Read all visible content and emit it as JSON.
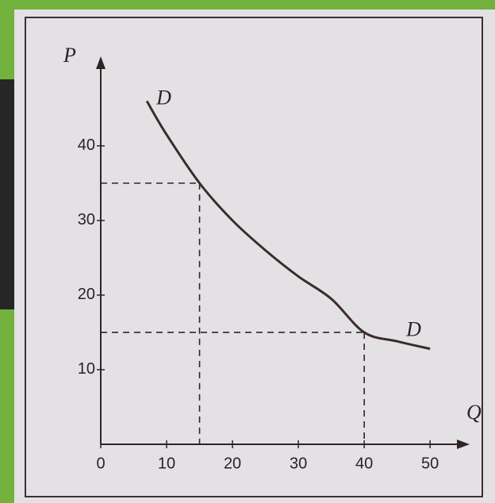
{
  "chart_data": {
    "type": "line",
    "x_label": "Q",
    "y_label": "P",
    "x": [
      7,
      10,
      15,
      20,
      25,
      30,
      35,
      40,
      45,
      50
    ],
    "series": [
      {
        "name": "D",
        "color": "#3a2c2e",
        "values": [
          46,
          41.5,
          35,
          30,
          26,
          22.5,
          19.5,
          15,
          13.8,
          12.8
        ]
      }
    ],
    "guides": [
      {
        "x": 15,
        "y": 35
      },
      {
        "x": 40,
        "y": 15
      }
    ],
    "xlim": [
      0,
      56
    ],
    "ylim": [
      0,
      52
    ],
    "xticks": [
      0,
      10,
      20,
      30,
      40,
      50
    ],
    "yticks": [
      10,
      20,
      30,
      40
    ]
  }
}
